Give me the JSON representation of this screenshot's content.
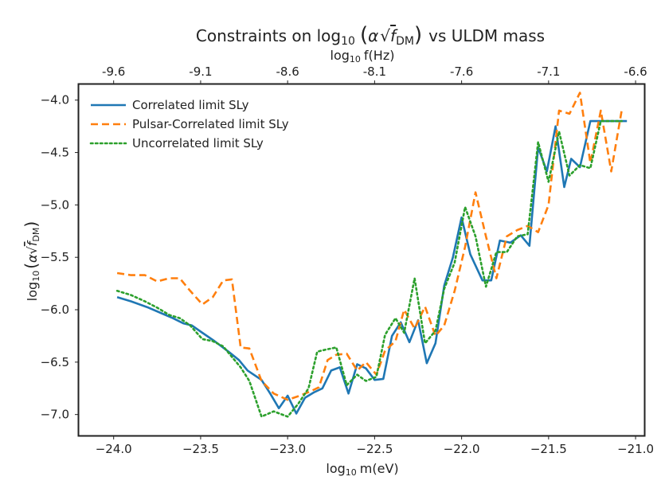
{
  "chart_data": {
    "type": "line",
    "title_prefix": "Constraints on log",
    "title_sub": "10",
    "title_expr_alpha": "α",
    "title_expr_f": "f",
    "title_expr_fsub": "DM",
    "title_suffix": "vs ULDM mass",
    "xlabel_prefix": "log",
    "xlabel_sub": "10",
    "xlabel_suffix": "m(eV)",
    "top_xlabel_prefix": "log",
    "top_xlabel_sub": "10",
    "top_xlabel_suffix": "f(Hz)",
    "ylabel_prefix": "log",
    "ylabel_sub": "10",
    "ylabel_expr_alpha": "α",
    "ylabel_expr_f": "f",
    "ylabel_expr_fsub": "DM",
    "xlim": [
      -24.2,
      -20.95
    ],
    "ylim": [
      -7.2,
      -3.85
    ],
    "x_ticks": [
      -24.0,
      -23.5,
      -23.0,
      -22.5,
      -22.0,
      -21.5,
      -21.0
    ],
    "x_tick_labels": [
      "−24.0",
      "−23.5",
      "−23.0",
      "−22.5",
      "−22.0",
      "−21.5",
      "−21.0"
    ],
    "y_ticks": [
      -7.0,
      -6.5,
      -6.0,
      -5.5,
      -5.0,
      -4.5,
      -4.0
    ],
    "y_tick_labels": [
      "−7.0",
      "−6.5",
      "−6.0",
      "−5.5",
      "−5.0",
      "−4.5",
      "−4.0"
    ],
    "top_ticks": [
      -24.0,
      -23.5,
      -23.0,
      -22.5,
      -22.0,
      -21.5,
      -21.0
    ],
    "top_tick_labels": [
      "-9.6",
      "-9.1",
      "-8.6",
      "-8.1",
      "-7.6",
      "-7.1",
      "-6.6"
    ],
    "grid": false,
    "legend_position": "upper-left",
    "series": [
      {
        "name": "Correlated limit SLy",
        "color": "#1f77b4",
        "style": "solid",
        "x": [
          -23.98,
          -23.9,
          -23.8,
          -23.73,
          -23.66,
          -23.6,
          -23.55,
          -23.49,
          -23.42,
          -23.34,
          -23.28,
          -23.23,
          -23.15,
          -23.1,
          -23.05,
          -23.0,
          -22.95,
          -22.9,
          -22.85,
          -22.8,
          -22.75,
          -22.7,
          -22.65,
          -22.6,
          -22.55,
          -22.5,
          -22.45,
          -22.4,
          -22.35,
          -22.3,
          -22.25,
          -22.2,
          -22.15,
          -22.1,
          -22.05,
          -22.0,
          -21.95,
          -21.88,
          -21.83,
          -21.78,
          -21.72,
          -21.66,
          -21.61,
          -21.56,
          -21.51,
          -21.46,
          -21.41,
          -21.37,
          -21.32,
          -21.26,
          -21.21,
          -21.16,
          -21.11,
          -21.05
        ],
        "values": [
          -5.88,
          -5.92,
          -5.98,
          -6.03,
          -6.08,
          -6.13,
          -6.15,
          -6.22,
          -6.3,
          -6.4,
          -6.48,
          -6.58,
          -6.67,
          -6.8,
          -6.94,
          -6.82,
          -6.99,
          -6.84,
          -6.79,
          -6.75,
          -6.58,
          -6.55,
          -6.8,
          -6.52,
          -6.56,
          -6.67,
          -6.66,
          -6.25,
          -6.12,
          -6.31,
          -6.1,
          -6.51,
          -6.32,
          -5.77,
          -5.5,
          -5.12,
          -5.47,
          -5.72,
          -5.72,
          -5.34,
          -5.36,
          -5.29,
          -5.39,
          -4.45,
          -4.68,
          -4.25,
          -4.83,
          -4.56,
          -4.64,
          -4.2,
          -4.2,
          -4.2,
          -4.2,
          -4.2
        ]
      },
      {
        "name": "Pulsar-Correlated limit SLy",
        "color": "#ff7f0e",
        "style": "dashed",
        "x": [
          -23.98,
          -23.9,
          -23.82,
          -23.75,
          -23.68,
          -23.62,
          -23.56,
          -23.49,
          -23.43,
          -23.37,
          -23.32,
          -23.27,
          -23.22,
          -23.15,
          -23.08,
          -23.0,
          -22.93,
          -22.87,
          -22.82,
          -22.77,
          -22.72,
          -22.66,
          -22.6,
          -22.55,
          -22.49,
          -22.44,
          -22.38,
          -22.33,
          -22.27,
          -22.21,
          -22.15,
          -22.1,
          -22.04,
          -21.98,
          -21.92,
          -21.86,
          -21.8,
          -21.74,
          -21.68,
          -21.62,
          -21.56,
          -21.5,
          -21.44,
          -21.38,
          -21.32,
          -21.26,
          -21.2,
          -21.14,
          -21.08
        ],
        "values": [
          -5.65,
          -5.67,
          -5.67,
          -5.73,
          -5.7,
          -5.7,
          -5.82,
          -5.95,
          -5.88,
          -5.72,
          -5.71,
          -6.36,
          -6.37,
          -6.68,
          -6.8,
          -6.86,
          -6.82,
          -6.78,
          -6.74,
          -6.48,
          -6.43,
          -6.42,
          -6.58,
          -6.5,
          -6.62,
          -6.39,
          -6.3,
          -6.0,
          -6.18,
          -5.97,
          -6.25,
          -6.15,
          -5.82,
          -5.4,
          -4.88,
          -5.3,
          -5.7,
          -5.3,
          -5.24,
          -5.2,
          -5.26,
          -5.0,
          -4.1,
          -4.13,
          -3.93,
          -4.6,
          -4.1,
          -4.68,
          -4.1
        ],
        "x_shift": 0.0
      },
      {
        "name": "Uncorrelated limit SLy",
        "color": "#2ca02c",
        "style": "dotted",
        "x": [
          -23.98,
          -23.9,
          -23.82,
          -23.75,
          -23.68,
          -23.62,
          -23.56,
          -23.49,
          -23.43,
          -23.37,
          -23.32,
          -23.27,
          -23.22,
          -23.15,
          -23.08,
          -23.0,
          -22.94,
          -22.88,
          -22.83,
          -22.78,
          -22.72,
          -22.66,
          -22.6,
          -22.55,
          -22.49,
          -22.44,
          -22.38,
          -22.33,
          -22.27,
          -22.21,
          -22.15,
          -22.1,
          -22.04,
          -21.98,
          -21.92,
          -21.86,
          -21.8,
          -21.74,
          -21.68,
          -21.62,
          -21.56,
          -21.5,
          -21.44,
          -21.38,
          -21.32,
          -21.26,
          -21.2,
          -21.14,
          -21.08
        ],
        "values": [
          -5.82,
          -5.86,
          -5.92,
          -5.98,
          -6.05,
          -6.08,
          -6.15,
          -6.28,
          -6.3,
          -6.35,
          -6.45,
          -6.55,
          -6.68,
          -7.02,
          -6.97,
          -7.02,
          -6.9,
          -6.75,
          -6.4,
          -6.38,
          -6.36,
          -6.72,
          -6.62,
          -6.68,
          -6.64,
          -6.24,
          -6.08,
          -6.22,
          -5.7,
          -6.32,
          -6.2,
          -5.8,
          -5.55,
          -5.02,
          -5.3,
          -5.78,
          -5.45,
          -5.45,
          -5.3,
          -5.28,
          -4.4,
          -4.78,
          -4.3,
          -4.72,
          -4.62,
          -4.65,
          -4.2,
          -4.2,
          -4.2
        ]
      }
    ]
  }
}
